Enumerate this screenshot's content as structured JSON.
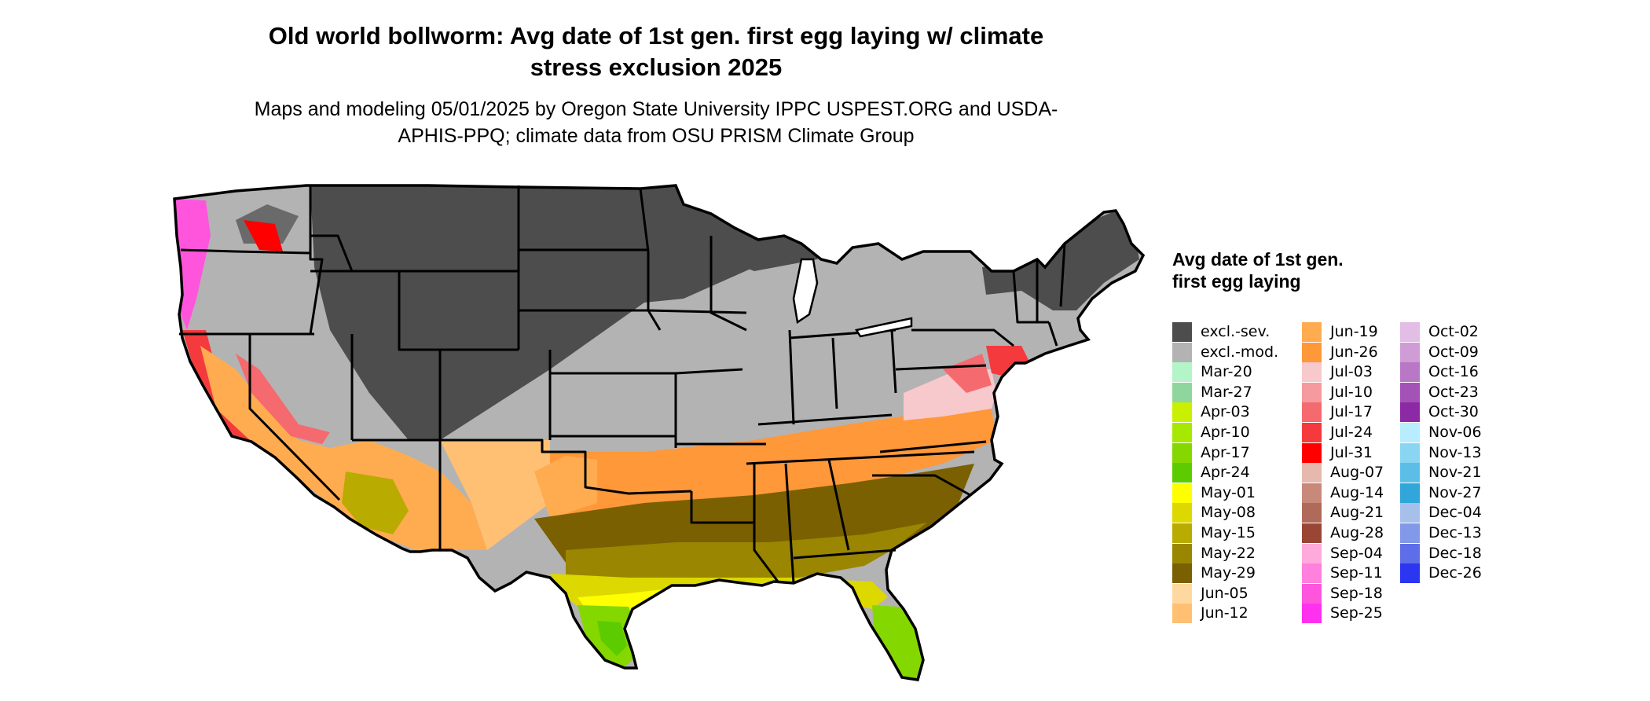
{
  "title": "Old world bollworm: Avg date of 1st gen. first egg laying w/ climate stress exclusion 2025",
  "subtitle": "Maps and modeling 05/01/2025 by Oregon State University IPPC USPEST.ORG and USDA-APHIS-PPQ; climate data from OSU PRISM Climate Group",
  "legend": {
    "title": "Avg date of 1st gen. first egg laying",
    "items": [
      {
        "label": "excl.-sev.",
        "color": "#4d4d4d"
      },
      {
        "label": "excl.-mod.",
        "color": "#b3b3b3"
      },
      {
        "label": "Mar-20",
        "color": "#b3f5c8"
      },
      {
        "label": "Mar-27",
        "color": "#8fd69e"
      },
      {
        "label": "Apr-03",
        "color": "#c8f000"
      },
      {
        "label": "Apr-10",
        "color": "#a6e800"
      },
      {
        "label": "Apr-17",
        "color": "#84d800"
      },
      {
        "label": "Apr-24",
        "color": "#5ccc00"
      },
      {
        "label": "May-01",
        "color": "#ffff00"
      },
      {
        "label": "May-08",
        "color": "#dcd800"
      },
      {
        "label": "May-15",
        "color": "#b9ab00"
      },
      {
        "label": "May-22",
        "color": "#9a8600"
      },
      {
        "label": "May-29",
        "color": "#7a6000"
      },
      {
        "label": "Jun-05",
        "color": "#ffd8a0"
      },
      {
        "label": "Jun-12",
        "color": "#ffc074"
      },
      {
        "label": "Jun-19",
        "color": "#ffac50"
      },
      {
        "label": "Jun-26",
        "color": "#ff9838"
      },
      {
        "label": "Jul-03",
        "color": "#f7c8cc"
      },
      {
        "label": "Jul-10",
        "color": "#f59a9e"
      },
      {
        "label": "Jul-17",
        "color": "#f56a6e"
      },
      {
        "label": "Jul-24",
        "color": "#f53a3e"
      },
      {
        "label": "Jul-31",
        "color": "#ff0000"
      },
      {
        "label": "Aug-07",
        "color": "#e6b8ae"
      },
      {
        "label": "Aug-14",
        "color": "#c9897a"
      },
      {
        "label": "Aug-21",
        "color": "#b06a5a"
      },
      {
        "label": "Aug-28",
        "color": "#9a4636"
      },
      {
        "label": "Sep-04",
        "color": "#ffaadd"
      },
      {
        "label": "Sep-11",
        "color": "#ff80dd"
      },
      {
        "label": "Sep-18",
        "color": "#ff55dd"
      },
      {
        "label": "Sep-25",
        "color": "#ff30ee"
      },
      {
        "label": "Oct-02",
        "color": "#e2bde6"
      },
      {
        "label": "Oct-09",
        "color": "#cf9cd6"
      },
      {
        "label": "Oct-16",
        "color": "#b978c6"
      },
      {
        "label": "Oct-23",
        "color": "#a352b6"
      },
      {
        "label": "Oct-30",
        "color": "#8b2aa4"
      },
      {
        "label": "Nov-06",
        "color": "#b8ecff"
      },
      {
        "label": "Nov-13",
        "color": "#8ad6f2"
      },
      {
        "label": "Nov-21",
        "color": "#5cbee6"
      },
      {
        "label": "Nov-27",
        "color": "#30a6da"
      },
      {
        "label": "Dec-04",
        "color": "#a6c0ea"
      },
      {
        "label": "Dec-13",
        "color": "#8298e8"
      },
      {
        "label": "Dec-18",
        "color": "#5e6ee8"
      },
      {
        "label": "Dec-26",
        "color": "#2a36f0"
      }
    ]
  }
}
